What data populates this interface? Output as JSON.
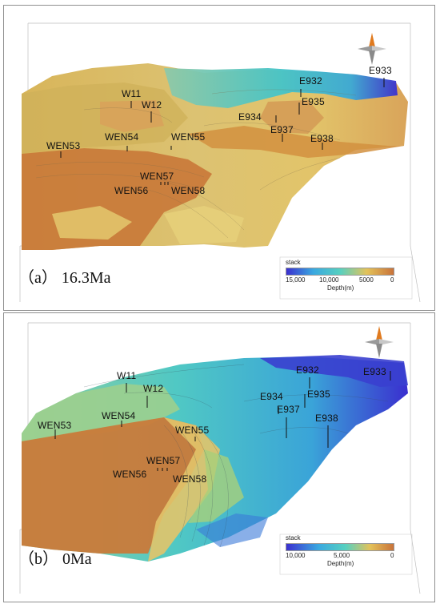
{
  "panel_a": {
    "caption": "（a） 16.3Ma",
    "legend": {
      "title": "stack",
      "ticks": [
        "15,000",
        "10,000",
        "5000",
        "0"
      ],
      "unit": "Depth(m)"
    },
    "wells": [
      {
        "label": "W11"
      },
      {
        "label": "W12"
      },
      {
        "label": "WEN53"
      },
      {
        "label": "WEN54"
      },
      {
        "label": "WEN55"
      },
      {
        "label": "WEN57"
      },
      {
        "label": "WEN56"
      },
      {
        "label": "WEN58"
      },
      {
        "label": "E932"
      },
      {
        "label": "E933"
      },
      {
        "label": "E935"
      },
      {
        "label": "E934"
      },
      {
        "label": "E937"
      },
      {
        "label": "E938"
      }
    ]
  },
  "panel_b": {
    "caption": "（b） 0Ma",
    "legend": {
      "title": "stack",
      "ticks": [
        "10,000",
        "5,000",
        "0"
      ],
      "unit": "Depth(m)"
    },
    "wells": [
      {
        "label": "W11"
      },
      {
        "label": "W12"
      },
      {
        "label": "WEN53"
      },
      {
        "label": "WEN54"
      },
      {
        "label": "WEN55"
      },
      {
        "label": "WEN57"
      },
      {
        "label": "WEN56"
      },
      {
        "label": "WEN58"
      },
      {
        "label": "E932"
      },
      {
        "label": "E933"
      },
      {
        "label": "E934"
      },
      {
        "label": "E935"
      },
      {
        "label": "E937"
      },
      {
        "label": "E938"
      }
    ]
  },
  "colors": {
    "deep": "#3a2fcf",
    "mid": "#38c0c8",
    "shallow_yellow": "#e0c86a",
    "shallow": "#c97a3a"
  }
}
